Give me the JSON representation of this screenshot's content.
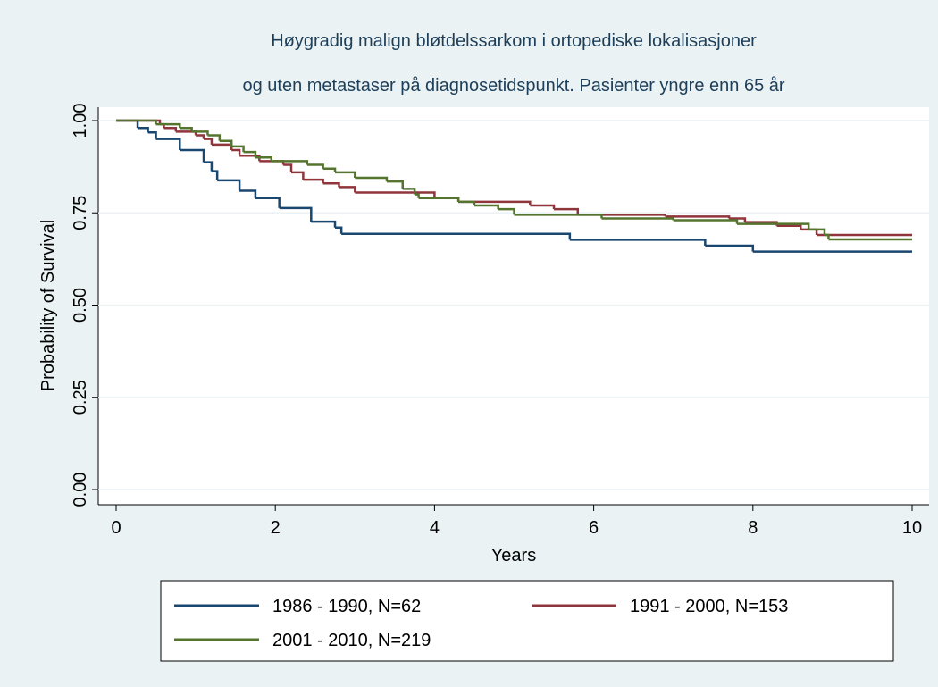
{
  "chart_data": {
    "type": "step",
    "title": [
      "Høygradig malign bløtdelssarkom i ortopediske lokalisasjoner",
      "og uten metastaser på diagnosetidspunkt. Pasienter yngre enn 65 år"
    ],
    "x_label": "Years",
    "y_label": "Probability of Survival",
    "xlim": [
      0,
      10
    ],
    "ylim": [
      0,
      1
    ],
    "xticks": [
      0,
      2,
      4,
      6,
      8,
      10
    ],
    "yticks": [
      {
        "value": 0,
        "label": "0.00"
      },
      {
        "value": 0.25,
        "label": "0.25"
      },
      {
        "value": 0.5,
        "label": "0.50"
      },
      {
        "value": 0.75,
        "label": "0.75"
      },
      {
        "value": 1,
        "label": "1.00"
      }
    ],
    "grid": true,
    "legend": "bottom",
    "series": [
      {
        "name": "1986 - 1990, N=62",
        "color": "#1a476f",
        "x": [
          0,
          0.27,
          0.4,
          0.5,
          0.8,
          1.1,
          1.2,
          1.27,
          1.55,
          1.75,
          2.05,
          2.45,
          2.75,
          2.83,
          5.7,
          7.4,
          8.0,
          10
        ],
        "values": [
          1,
          0.98,
          0.968,
          0.95,
          0.92,
          0.887,
          0.863,
          0.838,
          0.81,
          0.79,
          0.763,
          0.726,
          0.71,
          0.693,
          0.677,
          0.661,
          0.645,
          0.645
        ]
      },
      {
        "name": "1991 - 2000, N=153",
        "color": "#90353b",
        "x": [
          0,
          0.55,
          0.6,
          0.75,
          1.0,
          1.1,
          1.2,
          1.45,
          1.55,
          1.8,
          2.1,
          2.2,
          2.35,
          2.6,
          2.8,
          3.0,
          4.0,
          4.3,
          5.2,
          5.5,
          5.8,
          6.9,
          7.7,
          7.9,
          8.3,
          8.6,
          8.8,
          10
        ],
        "values": [
          1,
          0.99,
          0.98,
          0.97,
          0.96,
          0.95,
          0.935,
          0.92,
          0.905,
          0.89,
          0.88,
          0.86,
          0.84,
          0.83,
          0.82,
          0.805,
          0.79,
          0.78,
          0.77,
          0.76,
          0.745,
          0.74,
          0.735,
          0.725,
          0.715,
          0.705,
          0.69,
          0.69
        ]
      },
      {
        "name": "2001 - 2010, N=219",
        "color": "#55752f",
        "x": [
          0,
          0.5,
          0.8,
          0.95,
          1.15,
          1.3,
          1.45,
          1.6,
          1.75,
          1.95,
          2.4,
          2.6,
          2.75,
          3.0,
          3.4,
          3.6,
          3.75,
          3.8,
          4.3,
          4.5,
          4.8,
          5.0,
          6.1,
          7.0,
          7.8,
          8.7,
          8.9,
          8.95,
          10
        ],
        "values": [
          1,
          0.99,
          0.98,
          0.97,
          0.96,
          0.945,
          0.93,
          0.915,
          0.9,
          0.89,
          0.88,
          0.87,
          0.86,
          0.845,
          0.835,
          0.815,
          0.8,
          0.79,
          0.78,
          0.77,
          0.76,
          0.745,
          0.735,
          0.73,
          0.72,
          0.705,
          0.69,
          0.678,
          0.678
        ]
      }
    ]
  }
}
